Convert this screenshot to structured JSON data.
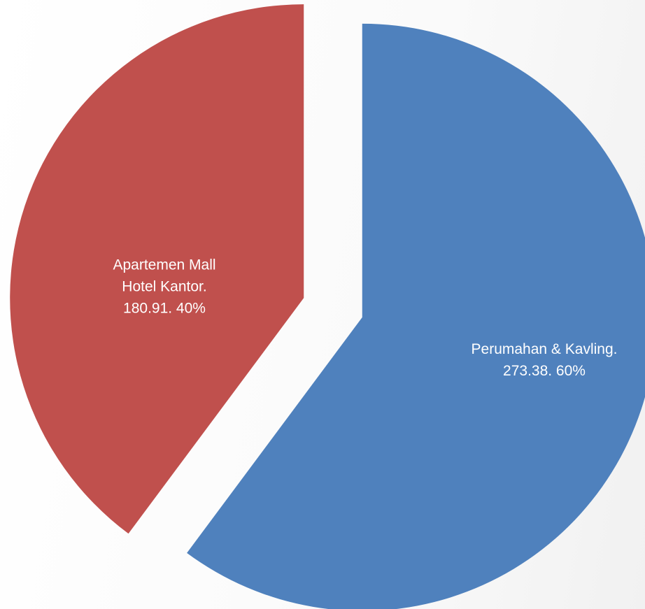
{
  "chart_data": {
    "type": "pie",
    "categories": [
      "Perumahan & Kavling.",
      "Apartemen Mall Hotel Kantor."
    ],
    "values": [
      273.38,
      180.91
    ],
    "value_labels": [
      "273.38. 60%",
      "180.91. 40%"
    ],
    "colors": [
      "#4f81bd",
      "#c0504d"
    ],
    "exploded": true
  }
}
